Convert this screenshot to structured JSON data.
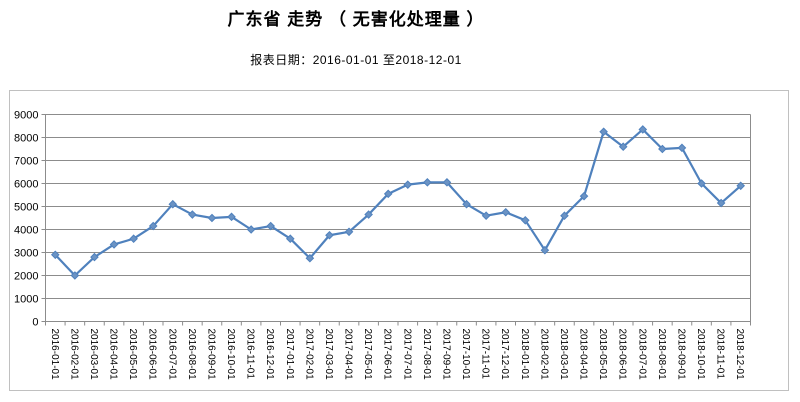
{
  "page": {
    "title": "广东省 走势 （ 无害化处理量 ）",
    "subtitle": "报表日期：2016-01-01 至2018-12-01"
  },
  "chart_data": {
    "type": "line",
    "title": "广东省 走势 （ 无害化处理量 ）",
    "subtitle": "报表日期：2016-01-01 至2018-12-01",
    "x": [
      "2016-01-01",
      "2016-02-01",
      "2016-03-01",
      "2016-04-01",
      "2016-05-01",
      "2016-06-01",
      "2016-07-01",
      "2016-08-01",
      "2016-09-01",
      "2016-10-01",
      "2016-11-01",
      "2016-12-01",
      "2017-01-01",
      "2017-02-01",
      "2017-03-01",
      "2017-04-01",
      "2017-05-01",
      "2017-06-01",
      "2017-07-01",
      "2017-08-01",
      "2017-09-01",
      "2017-10-01",
      "2017-11-01",
      "2017-12-01",
      "2018-01-01",
      "2018-02-01",
      "2018-03-01",
      "2018-04-01",
      "2018-05-01",
      "2018-06-01",
      "2018-07-01",
      "2018-08-01",
      "2018-09-01",
      "2018-10-01",
      "2018-11-01",
      "2018-12-01"
    ],
    "series": [
      {
        "name": "无害化处理量",
        "values": [
          2900,
          2000,
          2800,
          3350,
          3600,
          4150,
          5100,
          4650,
          4500,
          4550,
          4000,
          4150,
          3600,
          2750,
          3750,
          3900,
          4650,
          5550,
          5950,
          6050,
          6050,
          5100,
          4600,
          4750,
          4400,
          3100,
          4600,
          5450,
          8250,
          7600,
          8350,
          7500,
          7550,
          6000,
          5150,
          5900
        ]
      }
    ],
    "ylim": [
      0,
      9000
    ],
    "ytick_interval": 1000,
    "yticks": [
      0,
      1000,
      2000,
      3000,
      4000,
      5000,
      6000,
      7000,
      8000,
      9000
    ],
    "grid": true,
    "legend_position": "none",
    "x_label_rotation_deg": 90,
    "colors": {
      "line": "#4f81bd",
      "marker_fill": "#6b93c4",
      "grid": "#8c8c8c",
      "axis": "#8c8c8c",
      "chart_border": "#c0c0c0",
      "text": "#000000"
    }
  }
}
